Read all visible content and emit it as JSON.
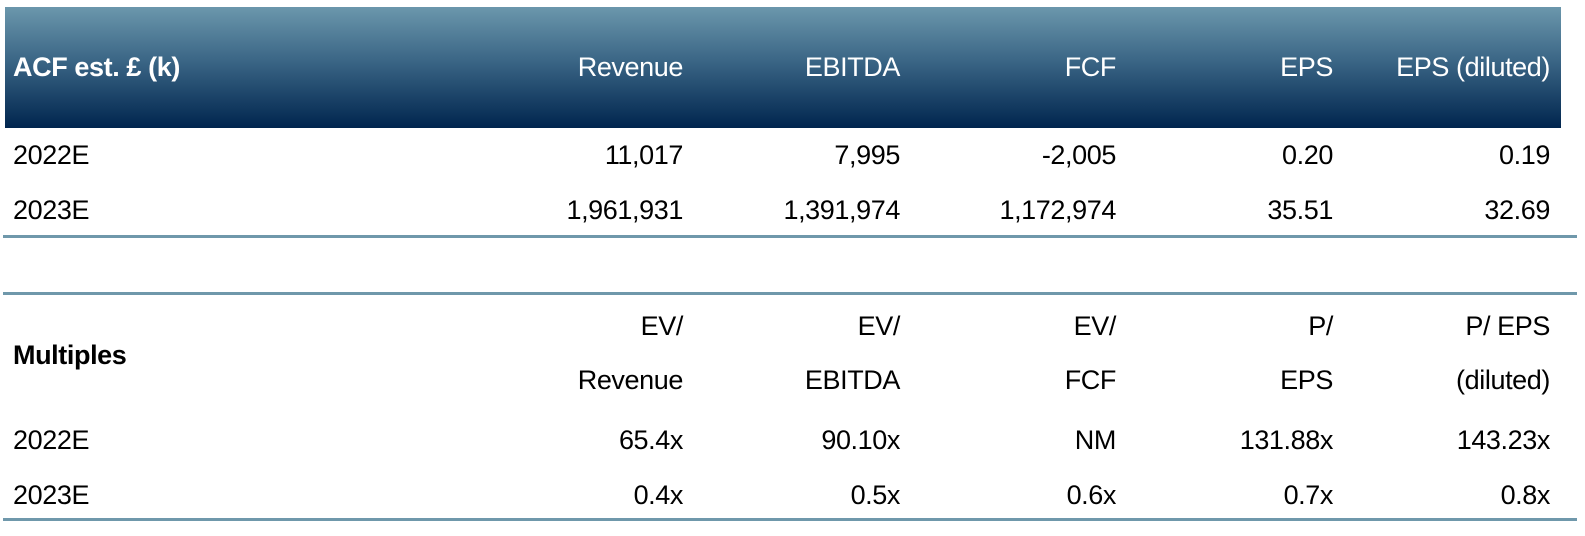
{
  "estimates": {
    "title": "ACF est. £ (k)",
    "columns": [
      "Revenue",
      "EBITDA",
      "FCF",
      "EPS",
      "EPS (diluted)"
    ],
    "rows": [
      {
        "label": "2022E",
        "values": [
          "11,017",
          "7,995",
          "-2,005",
          "0.20",
          "0.19"
        ]
      },
      {
        "label": "2023E",
        "values": [
          "1,961,931",
          "1,391,974",
          "1,172,974",
          "35.51",
          "32.69"
        ]
      }
    ]
  },
  "multiples": {
    "title": "Multiples",
    "columns": [
      {
        "line1": "EV/",
        "line2": "Revenue"
      },
      {
        "line1": "EV/",
        "line2": "EBITDA"
      },
      {
        "line1": "EV/",
        "line2": "FCF"
      },
      {
        "line1": "P/",
        "line2": "EPS"
      },
      {
        "line1": "P/ EPS",
        "line2": "(diluted)"
      }
    ],
    "rows": [
      {
        "label": "2022E",
        "values": [
          "65.4x",
          "90.10x",
          "NM",
          "131.88x",
          "143.23x"
        ]
      },
      {
        "label": "2023E",
        "values": [
          "0.4x",
          "0.5x",
          "0.6x",
          "0.7x",
          "0.8x"
        ]
      }
    ]
  },
  "colors": {
    "header_top": "#6b97ac",
    "header_bottom": "#00254e",
    "rule": "#6f98ab"
  }
}
